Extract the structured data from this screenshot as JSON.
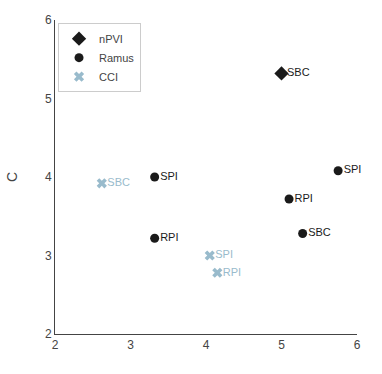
{
  "chart_data": {
    "type": "scatter",
    "ylabel": "C",
    "series": [
      {
        "name": "nPVI",
        "color": "#1a1a1a",
        "marker": "diamond",
        "x": [
          5.0
        ],
        "y": [
          5.32
        ],
        "labels": [
          "SBC"
        ]
      },
      {
        "name": "Ramus",
        "color": "#1a1a1a",
        "marker": "circle",
        "x": [
          3.32,
          3.32,
          5.75,
          5.1,
          5.28
        ],
        "y": [
          4.0,
          3.22,
          4.08,
          3.72,
          3.28
        ],
        "labels": [
          "SPI",
          "RPI",
          "SPI",
          "RPI",
          "SBC"
        ]
      },
      {
        "name": "CCI",
        "color": "#99bbcc",
        "marker": "x",
        "x": [
          2.62,
          4.05,
          4.15
        ],
        "y": [
          3.92,
          3.0,
          2.78
        ],
        "labels": [
          "SBC",
          "SPI",
          "RPI"
        ]
      }
    ],
    "xlim": [
      2,
      6
    ],
    "ylim": [
      2,
      6
    ],
    "xticks": [
      2,
      3,
      4,
      5,
      6
    ],
    "yticks": [
      2,
      3,
      4,
      5,
      6
    ],
    "grid": false,
    "legend": "upper left"
  }
}
